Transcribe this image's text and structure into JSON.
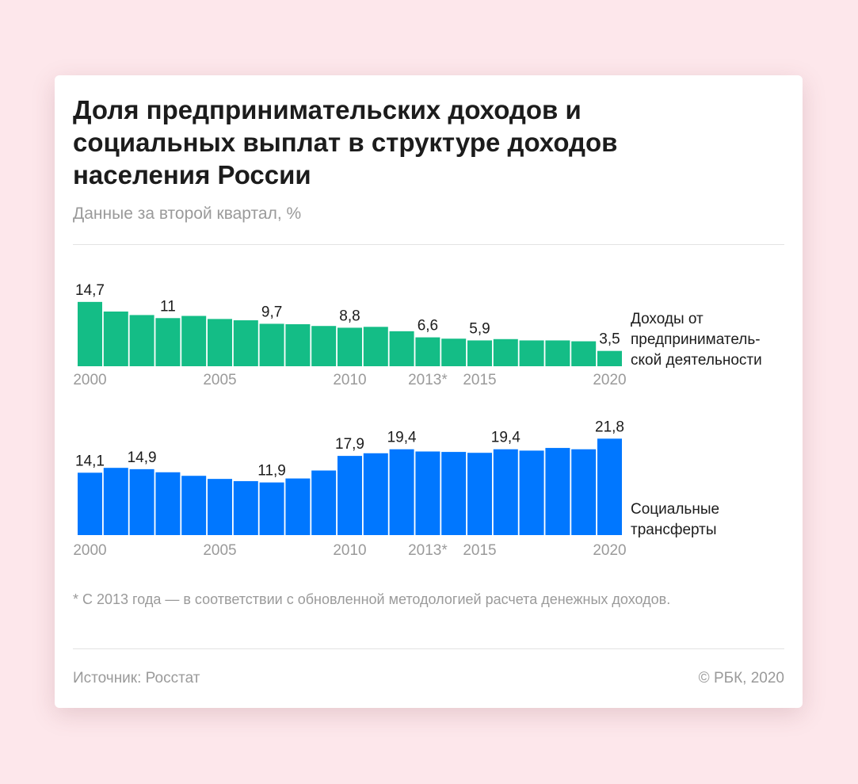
{
  "title": "Доля предпринимательских доходов и социальных выплат в структуре доходов населения России",
  "subtitle": "Данные за второй квартал, %",
  "footnote": "* С 2013 года — в соответствии с обновленной методологией расчета денежных доходов.",
  "source": "Источник: Росстат",
  "copyright": "© РБК, 2020",
  "chart_data": [
    {
      "type": "bar",
      "name": "Доходы от предпринимательской деятельности",
      "series_label_lines": [
        "Доходы от",
        "предприниматель-",
        "ской деятельности"
      ],
      "color": "#14bd86",
      "categories": [
        "2000",
        "2001",
        "2002",
        "2003",
        "2004",
        "2005",
        "2006",
        "2007",
        "2008",
        "2009",
        "2010",
        "2011",
        "2012",
        "2013",
        "2014",
        "2015",
        "2016",
        "2017",
        "2018",
        "2019",
        "2020"
      ],
      "values": [
        14.7,
        12.5,
        11.7,
        11,
        11.5,
        10.8,
        10.5,
        9.7,
        9.6,
        9.2,
        8.8,
        9.0,
        8.0,
        6.6,
        6.3,
        5.9,
        6.2,
        5.9,
        5.9,
        5.7,
        3.5
      ],
      "data_labels": {
        "0": "14,7",
        "3": "11",
        "7": "9,7",
        "10": "8,8",
        "13": "6,6",
        "15": "5,9",
        "20": "3,5"
      },
      "tick_labels": {
        "0": "2000",
        "5": "2005",
        "10": "2010",
        "13": "2013*",
        "15": "2015",
        "20": "2020"
      },
      "ylim": [
        0,
        15
      ]
    },
    {
      "type": "bar",
      "name": "Социальные трансферты",
      "series_label_lines": [
        "Социальные",
        "трансферты"
      ],
      "color": "#0077ff",
      "categories": [
        "2000",
        "2001",
        "2002",
        "2003",
        "2004",
        "2005",
        "2006",
        "2007",
        "2008",
        "2009",
        "2010",
        "2011",
        "2012",
        "2013",
        "2014",
        "2015",
        "2016",
        "2017",
        "2018",
        "2019",
        "2020"
      ],
      "values": [
        14.1,
        15.2,
        14.9,
        14.2,
        13.4,
        12.7,
        12.2,
        11.9,
        12.8,
        14.6,
        17.9,
        18.5,
        19.4,
        18.9,
        18.8,
        18.6,
        19.4,
        19.1,
        19.7,
        19.4,
        21.8
      ],
      "data_labels": {
        "0": "14,1",
        "2": "14,9",
        "7": "11,9",
        "10": "17,9",
        "12": "19,4",
        "16": "19,4",
        "20": "21,8"
      },
      "tick_labels": {
        "0": "2000",
        "5": "2005",
        "10": "2010",
        "13": "2013*",
        "15": "2015",
        "20": "2020"
      },
      "ylim": [
        0,
        22
      ]
    }
  ]
}
